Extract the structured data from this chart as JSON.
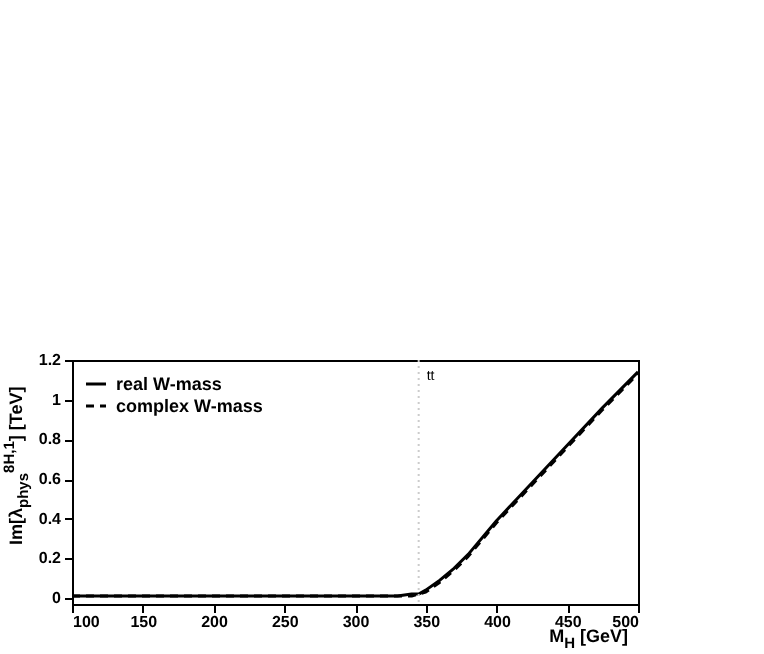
{
  "chart_data": {
    "type": "line",
    "xlabel": "M$_{H}$ [GeV]",
    "ylabel": "Im[λ$_{phys}$$^{8H,1}$] [TeV]",
    "xlim": [
      100,
      500
    ],
    "ylim": [
      -0.03,
      1.2
    ],
    "xticks": [
      100,
      150,
      200,
      250,
      300,
      350,
      400,
      450,
      500
    ],
    "yticks": [
      0,
      0.2,
      0.4,
      0.6,
      0.8,
      1,
      1.2
    ],
    "x": [
      100,
      200,
      300,
      330,
      340,
      345,
      350,
      360,
      370,
      380,
      400,
      425,
      450,
      475,
      500
    ],
    "series": [
      {
        "name": "real W-mass",
        "color": "#000000",
        "line_style": "solid",
        "values": [
          0.01,
          0.01,
          0.01,
          0.01,
          0.02,
          0.02,
          0.04,
          0.09,
          0.15,
          0.22,
          0.39,
          0.58,
          0.77,
          0.96,
          1.14
        ]
      },
      {
        "name": "complex W-mass",
        "color": "#000000",
        "line_style": "dashed",
        "values": [
          0.01,
          0.01,
          0.01,
          0.01,
          0.01,
          0.02,
          0.03,
          0.08,
          0.14,
          0.21,
          0.38,
          0.57,
          0.76,
          0.95,
          1.13
        ]
      }
    ],
    "ref_lines": [
      {
        "axis": "x",
        "value": 345,
        "label": "tt",
        "color": "#cccccc",
        "line_style": "dotted"
      }
    ],
    "legend": "top left",
    "grid": false
  }
}
